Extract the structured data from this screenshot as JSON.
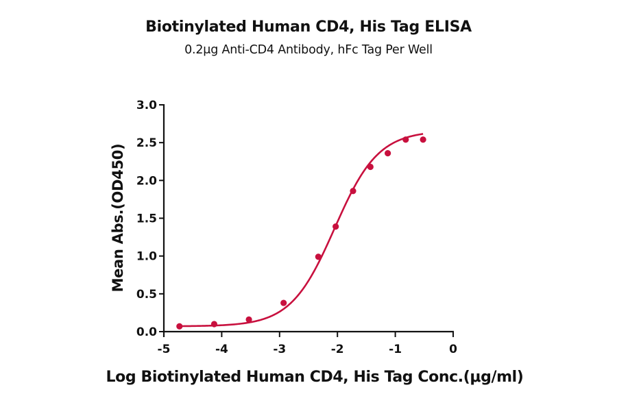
{
  "chart_data": {
    "type": "line",
    "title": "Biotinylated Human CD4, His Tag ELISA",
    "subtitle": "0.2μg Anti-CD4 Antibody, hFc Tag Per Well",
    "xlabel": "Log Biotinylated Human CD4, His Tag Conc.(μg/ml)",
    "ylabel": "Mean Abs.(OD450)",
    "xlim": [
      -5,
      0
    ],
    "ylim": [
      0,
      3.0
    ],
    "xticks": [
      -5,
      -4,
      -3,
      -2,
      -1,
      0
    ],
    "xtick_labels": [
      "-5",
      "-4",
      "-3",
      "-2",
      "-1",
      "0"
    ],
    "yticks": [
      0,
      0.5,
      1.0,
      1.5,
      2.0,
      2.5,
      3.0
    ],
    "ytick_labels": [
      "0.0",
      "0.5",
      "1.0",
      "1.5",
      "2.0",
      "2.5",
      "3.0"
    ],
    "grid": false,
    "legend": null,
    "color": "#C8103E",
    "fit": "4-parameter logistic (sigmoidal)",
    "series": [
      {
        "name": "Biotinylated Human CD4, His Tag",
        "x": [
          -4.73,
          -4.13,
          -3.53,
          -2.93,
          -2.33,
          -2.03,
          -1.73,
          -1.43,
          -1.13,
          -0.82,
          -0.52
        ],
        "y": [
          0.07,
          0.1,
          0.16,
          0.38,
          0.99,
          1.39,
          1.86,
          2.18,
          2.36,
          2.54,
          2.54
        ]
      }
    ]
  }
}
